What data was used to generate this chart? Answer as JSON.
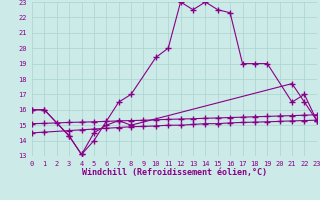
{
  "background_color": "#cceae7",
  "grid_color": "#aad4d0",
  "line_color": "#880088",
  "xlabel": "Windchill (Refroidissement éolien,°C)",
  "xlim": [
    0,
    23
  ],
  "ylim": [
    13,
    23
  ],
  "xticks": [
    0,
    1,
    2,
    3,
    4,
    5,
    6,
    7,
    8,
    9,
    10,
    11,
    12,
    13,
    14,
    15,
    16,
    17,
    18,
    19,
    20,
    21,
    22,
    23
  ],
  "yticks": [
    13,
    14,
    15,
    16,
    17,
    18,
    19,
    20,
    21,
    22,
    23
  ],
  "line1_x": [
    0,
    1,
    3,
    4,
    5,
    7,
    8,
    10,
    11,
    12,
    13,
    14,
    15,
    16,
    17,
    18,
    19,
    21,
    22,
    23
  ],
  "line1_y": [
    16.0,
    16.0,
    14.3,
    13.1,
    14.0,
    16.5,
    17.0,
    19.4,
    20.0,
    23.0,
    22.5,
    23.0,
    22.5,
    22.3,
    19.0,
    19.0,
    19.0,
    16.5,
    17.0,
    15.3
  ],
  "line2_x": [
    0,
    1,
    3,
    4,
    5,
    6,
    7,
    8,
    21,
    22,
    23
  ],
  "line2_y": [
    16.0,
    16.0,
    14.3,
    13.1,
    14.5,
    15.0,
    15.3,
    15.0,
    17.7,
    16.5,
    15.3
  ],
  "line3_x": [
    0,
    1,
    3,
    4,
    5,
    6,
    7,
    8,
    9,
    10,
    11,
    12,
    13,
    14,
    15,
    16,
    17,
    18,
    19,
    20,
    21,
    22,
    23
  ],
  "line3_y": [
    14.5,
    14.55,
    14.65,
    14.7,
    14.75,
    14.8,
    14.85,
    14.9,
    14.92,
    14.95,
    15.0,
    15.0,
    15.05,
    15.1,
    15.1,
    15.15,
    15.18,
    15.2,
    15.22,
    15.25,
    15.28,
    15.3,
    15.33
  ],
  "line4_x": [
    0,
    1,
    2,
    3,
    4,
    5,
    6,
    7,
    8,
    9,
    10,
    11,
    12,
    13,
    14,
    15,
    16,
    17,
    18,
    19,
    20,
    21,
    22,
    23
  ],
  "line4_y": [
    15.1,
    15.12,
    15.15,
    15.18,
    15.2,
    15.22,
    15.25,
    15.28,
    15.3,
    15.32,
    15.35,
    15.38,
    15.4,
    15.42,
    15.45,
    15.47,
    15.5,
    15.52,
    15.55,
    15.57,
    15.6,
    15.62,
    15.65,
    15.68
  ],
  "marker": "+",
  "marker_size": 4,
  "linewidth": 0.8,
  "tick_fontsize": 5.0,
  "xlabel_fontsize": 6.0
}
